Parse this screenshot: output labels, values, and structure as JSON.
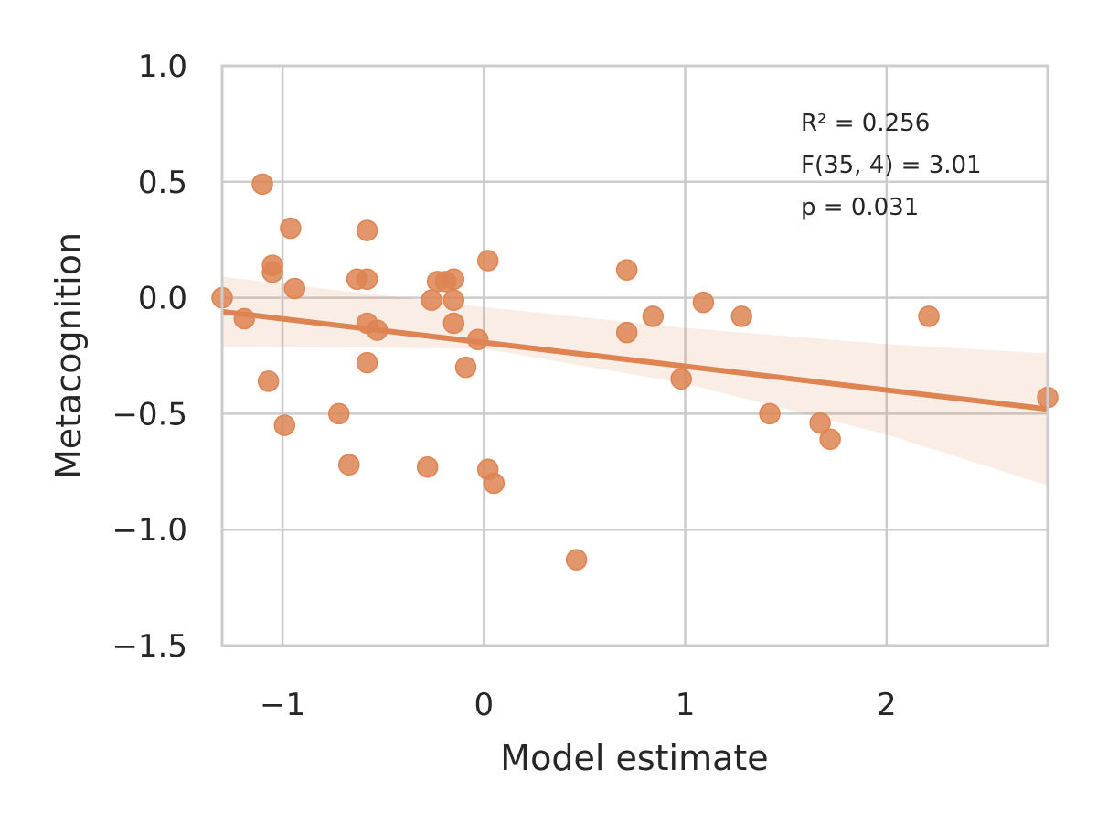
{
  "chart_data": {
    "type": "scatter",
    "title": "",
    "xlabel": "Model estimate",
    "ylabel": "Metacognition",
    "xlim": [
      -1.3,
      2.8
    ],
    "ylim": [
      -1.5,
      1.0
    ],
    "xticks": [
      -1,
      0,
      1,
      2
    ],
    "yticks": [
      -1.5,
      -1.0,
      -0.5,
      0.0,
      0.5,
      1.0
    ],
    "xtick_labels": [
      "−1",
      "0",
      "1",
      "2"
    ],
    "ytick_labels": [
      "−1.5",
      "−1.0",
      "−0.5",
      "0.0",
      "0.5",
      "1.0"
    ],
    "grid": true,
    "color": "#dd8452",
    "points": [
      {
        "x": -1.3,
        "y": 0.0
      },
      {
        "x": -1.19,
        "y": -0.09
      },
      {
        "x": -1.1,
        "y": 0.49
      },
      {
        "x": -1.07,
        "y": -0.36
      },
      {
        "x": -1.05,
        "y": 0.14
      },
      {
        "x": -1.05,
        "y": 0.11
      },
      {
        "x": -0.99,
        "y": -0.55
      },
      {
        "x": -0.96,
        "y": 0.3
      },
      {
        "x": -0.94,
        "y": 0.04
      },
      {
        "x": -0.72,
        "y": -0.5
      },
      {
        "x": -0.67,
        "y": -0.72
      },
      {
        "x": -0.63,
        "y": 0.08
      },
      {
        "x": -0.58,
        "y": 0.29
      },
      {
        "x": -0.58,
        "y": 0.08
      },
      {
        "x": -0.58,
        "y": -0.11
      },
      {
        "x": -0.58,
        "y": -0.28
      },
      {
        "x": -0.53,
        "y": -0.14
      },
      {
        "x": -0.28,
        "y": -0.73
      },
      {
        "x": -0.26,
        "y": -0.01
      },
      {
        "x": -0.23,
        "y": 0.07
      },
      {
        "x": -0.19,
        "y": 0.07
      },
      {
        "x": -0.15,
        "y": 0.08
      },
      {
        "x": -0.15,
        "y": -0.01
      },
      {
        "x": -0.15,
        "y": -0.11
      },
      {
        "x": -0.09,
        "y": -0.3
      },
      {
        "x": -0.03,
        "y": -0.18
      },
      {
        "x": 0.02,
        "y": 0.16
      },
      {
        "x": 0.02,
        "y": -0.74
      },
      {
        "x": 0.05,
        "y": -0.8
      },
      {
        "x": 0.46,
        "y": -1.13
      },
      {
        "x": 0.71,
        "y": 0.12
      },
      {
        "x": 0.71,
        "y": -0.15
      },
      {
        "x": 0.84,
        "y": -0.08
      },
      {
        "x": 0.98,
        "y": -0.35
      },
      {
        "x": 1.09,
        "y": -0.02
      },
      {
        "x": 1.28,
        "y": -0.08
      },
      {
        "x": 1.42,
        "y": -0.5
      },
      {
        "x": 1.67,
        "y": -0.54
      },
      {
        "x": 1.72,
        "y": -0.61
      },
      {
        "x": 2.21,
        "y": -0.08
      },
      {
        "x": 2.8,
        "y": -0.43
      }
    ],
    "regression": {
      "x": [
        -1.3,
        2.8
      ],
      "y": [
        -0.06,
        -0.48
      ]
    },
    "confidence_band": {
      "x": [
        -1.3,
        0.0,
        1.0,
        2.0,
        2.8
      ],
      "upper": [
        0.09,
        -0.04,
        -0.13,
        -0.2,
        -0.24
      ],
      "lower": [
        -0.21,
        -0.22,
        -0.37,
        -0.59,
        -0.81
      ]
    },
    "annotations": [
      "R² = 0.256",
      "F(35, 4) = 3.01",
      "p = 0.031"
    ]
  }
}
